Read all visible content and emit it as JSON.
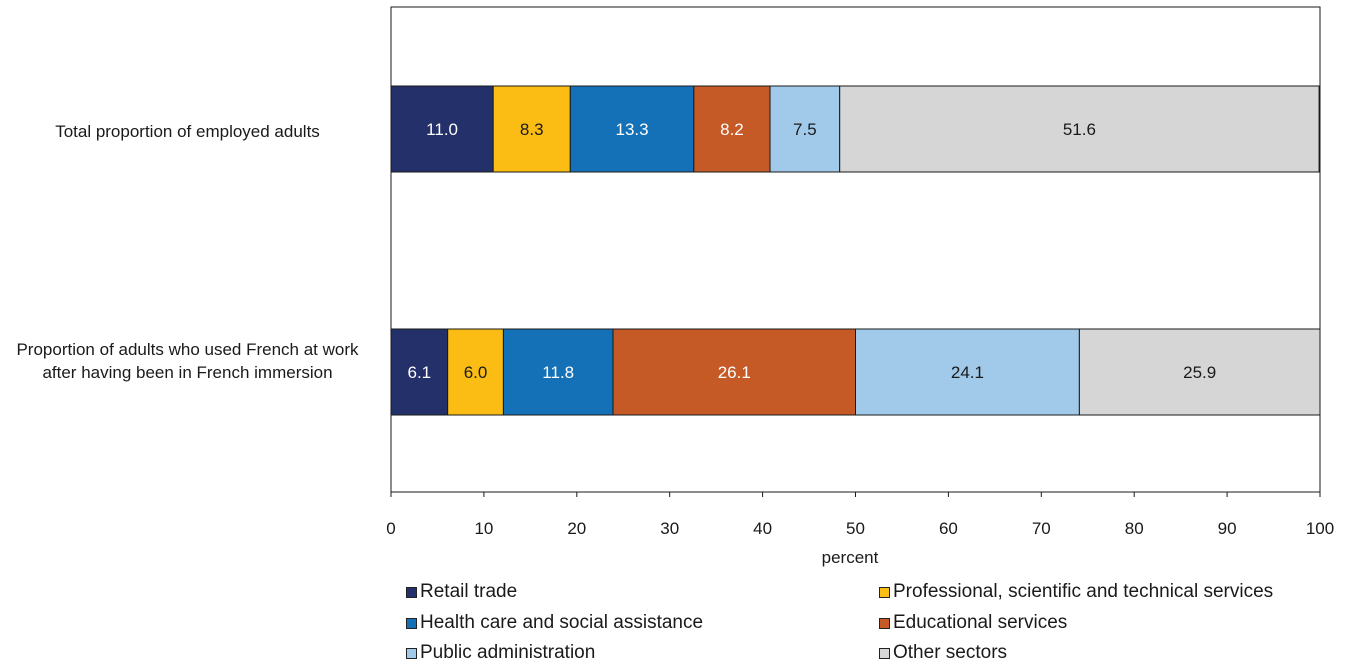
{
  "chart_data": {
    "type": "bar",
    "orientation": "horizontal",
    "stacked": true,
    "categories": [
      "Total proportion of employed adults",
      "Proportion of adults who used French at work after having been in French immersion"
    ],
    "series": [
      {
        "name": "Retail trade",
        "color": "#23306a",
        "values": [
          11.0,
          6.1
        ],
        "labels": [
          "11.0",
          "6.1"
        ]
      },
      {
        "name": "Professional, scientific and technical services",
        "color": "#fbbd13",
        "values": [
          8.3,
          6.0
        ],
        "labels": [
          "8.3",
          "6.0"
        ]
      },
      {
        "name": "Health care and social assistance",
        "color": "#1471b7",
        "values": [
          13.3,
          11.8
        ],
        "labels": [
          "13.3",
          "11.8"
        ]
      },
      {
        "name": "Educational services",
        "color": "#c65a27",
        "values": [
          8.2,
          26.1
        ],
        "labels": [
          "8.2",
          "26.1"
        ]
      },
      {
        "name": "Public administration",
        "color": "#a0c9ea",
        "values": [
          7.5,
          24.1
        ],
        "labels": [
          "7.5",
          "24.1"
        ]
      },
      {
        "name": "Other sectors",
        "color": "#d6d6d6",
        "values": [
          51.6,
          25.9
        ],
        "labels": [
          "51.6",
          "25.9"
        ]
      }
    ],
    "xlabel": "percent",
    "ylabel": "",
    "xlim": [
      0,
      100
    ],
    "xticks": [
      "0",
      "10",
      "20",
      "30",
      "40",
      "50",
      "60",
      "70",
      "80",
      "90",
      "100"
    ],
    "grid": false,
    "legend_position": "bottom"
  }
}
